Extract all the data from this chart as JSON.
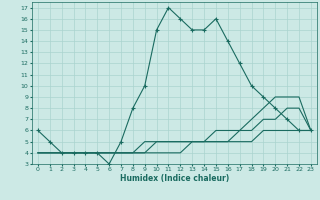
{
  "title": "",
  "xlabel": "Humidex (Indice chaleur)",
  "bg_color": "#cce9e5",
  "grid_color": "#aad4cf",
  "line_color": "#1a6b60",
  "xlim": [
    -0.5,
    23.5
  ],
  "ylim": [
    3,
    17.5
  ],
  "xticks": [
    0,
    1,
    2,
    3,
    4,
    5,
    6,
    7,
    8,
    9,
    10,
    11,
    12,
    13,
    14,
    15,
    16,
    17,
    18,
    19,
    20,
    21,
    22,
    23
  ],
  "yticks": [
    3,
    4,
    5,
    6,
    7,
    8,
    9,
    10,
    11,
    12,
    13,
    14,
    15,
    16,
    17
  ],
  "lines": [
    {
      "x": [
        0,
        1,
        2,
        3,
        4,
        5,
        6,
        7,
        8,
        9,
        10,
        11,
        12,
        13,
        14,
        15,
        16,
        17,
        18,
        19,
        20,
        21,
        22,
        23
      ],
      "y": [
        6,
        5,
        4,
        4,
        4,
        4,
        3,
        5,
        8,
        10,
        15,
        17,
        16,
        15,
        15,
        16,
        14,
        12,
        10,
        9,
        8,
        7,
        6,
        6
      ],
      "marker": true
    },
    {
      "x": [
        0,
        1,
        2,
        3,
        4,
        5,
        6,
        7,
        8,
        9,
        10,
        11,
        12,
        13,
        14,
        15,
        16,
        17,
        18,
        19,
        20,
        21,
        22,
        23
      ],
      "y": [
        4,
        4,
        4,
        4,
        4,
        4,
        4,
        4,
        4,
        5,
        5,
        5,
        5,
        5,
        5,
        6,
        6,
        6,
        7,
        8,
        9,
        9,
        9,
        6
      ],
      "marker": false
    },
    {
      "x": [
        0,
        1,
        2,
        3,
        4,
        5,
        6,
        7,
        8,
        9,
        10,
        11,
        12,
        13,
        14,
        15,
        16,
        17,
        18,
        19,
        20,
        21,
        22,
        23
      ],
      "y": [
        4,
        4,
        4,
        4,
        4,
        4,
        4,
        4,
        4,
        4,
        5,
        5,
        5,
        5,
        5,
        5,
        5,
        6,
        6,
        7,
        7,
        8,
        8,
        6
      ],
      "marker": false
    },
    {
      "x": [
        0,
        1,
        2,
        3,
        4,
        5,
        6,
        7,
        8,
        9,
        10,
        11,
        12,
        13,
        14,
        15,
        16,
        17,
        18,
        19,
        20,
        21,
        22,
        23
      ],
      "y": [
        4,
        4,
        4,
        4,
        4,
        4,
        4,
        4,
        4,
        4,
        4,
        4,
        4,
        5,
        5,
        5,
        5,
        5,
        5,
        6,
        6,
        6,
        6,
        6
      ],
      "marker": false
    }
  ]
}
